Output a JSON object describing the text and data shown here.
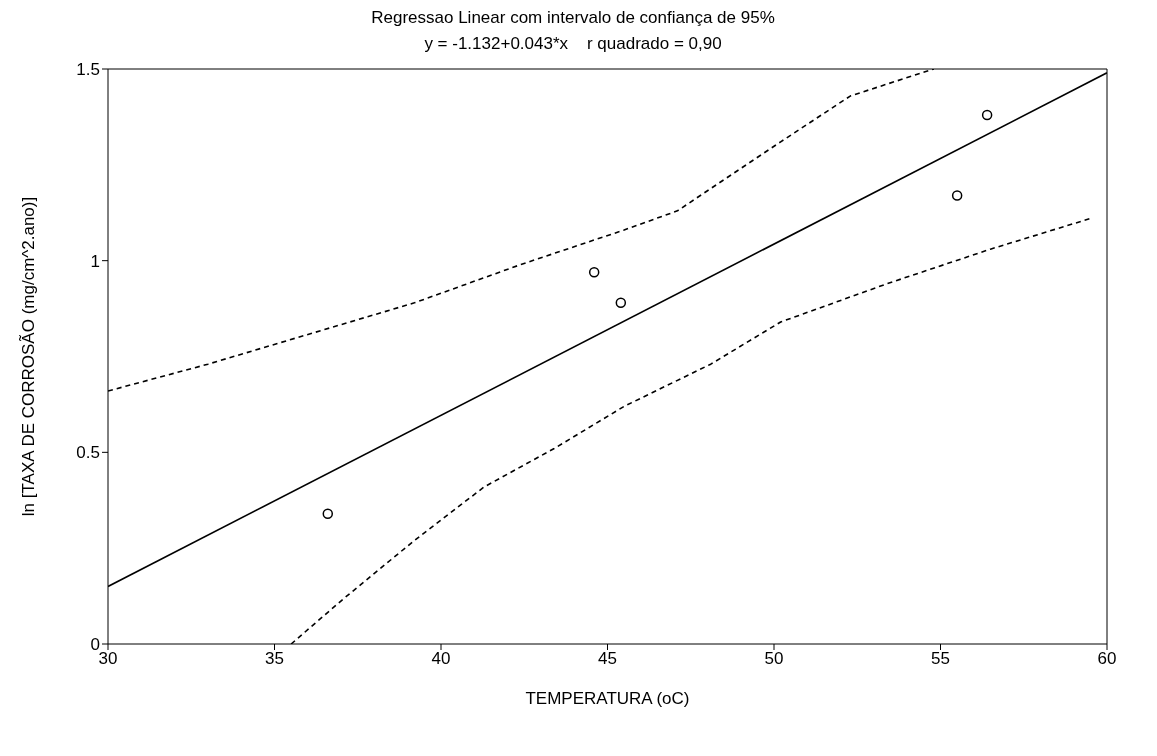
{
  "chart_data": {
    "type": "scatter",
    "title": "Regressao Linear com intervalo de confiança de 95%",
    "subtitle": "y = -1.132+0.043*x    r quadrado = 0,90",
    "xlabel": "TEMPERATURA (oC)",
    "ylabel": "ln [TAXA DE CORROSÃO (mg/cm^2.ano)]",
    "xlim": [
      30,
      60
    ],
    "xticks": [
      30,
      35,
      40,
      45,
      50,
      55,
      60
    ],
    "ylim": [
      0,
      1.5
    ],
    "yticks": [
      0,
      0.5,
      1,
      1.5
    ],
    "grid": false,
    "legend": false,
    "series": [
      {
        "color": "#000000",
        "marker": "circle",
        "x": [
          36.6,
          44.6,
          45.4,
          55.5,
          56.4
        ],
        "values": [
          0.34,
          0.97,
          0.89,
          1.17,
          1.38
        ]
      },
      {
        "type": "line",
        "color": "#000000",
        "line_style": "solid",
        "marker": "none",
        "x": [
          30,
          60
        ],
        "values": [
          0.15,
          1.49
        ]
      },
      {
        "type": "line",
        "color": "#000000",
        "line_style": "dashed",
        "marker": "none",
        "x": [
          35.5,
          37.1,
          39.2,
          41.3,
          43.4,
          45.5,
          48.1,
          50.2,
          53.4,
          56.5,
          59.5
        ],
        "values": [
          0,
          0.12,
          0.27,
          0.41,
          0.51,
          0.62,
          0.73,
          0.84,
          0.94,
          1.03,
          1.11
        ]
      },
      {
        "type": "line",
        "color": "#000000",
        "line_style": "dashed",
        "marker": "none",
        "x": [
          30,
          33,
          36.1,
          39.2,
          42.4,
          45.5,
          47.1,
          50.2,
          52.3,
          54.8
        ],
        "values": [
          0.66,
          0.73,
          0.81,
          0.89,
          0.99,
          1.08,
          1.13,
          1.31,
          1.43,
          1.5
        ]
      }
    ]
  }
}
